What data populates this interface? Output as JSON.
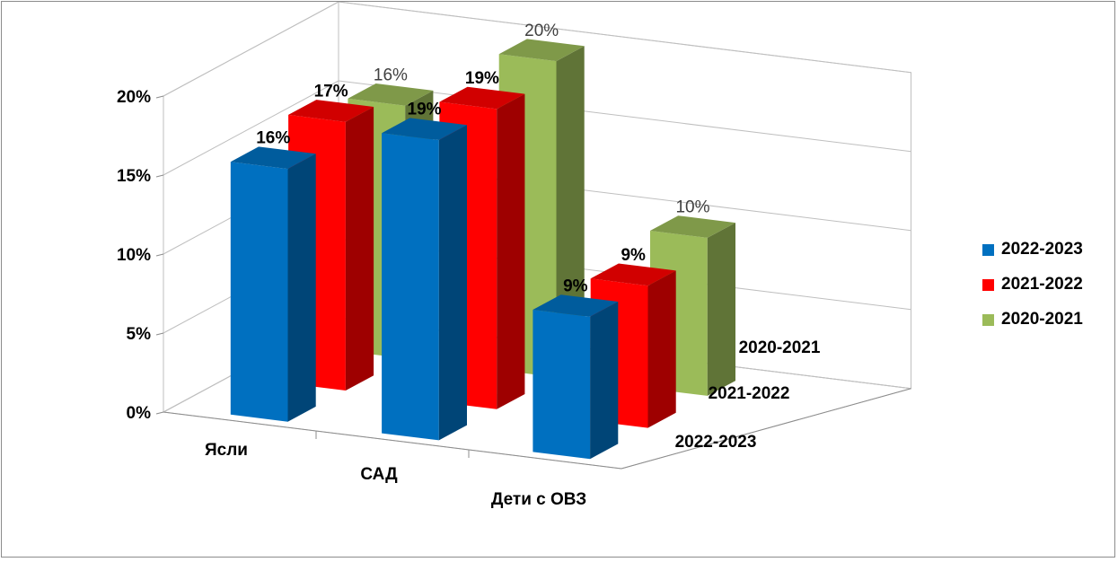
{
  "chart_data": {
    "type": "bar",
    "subtype": "3d-clustered-columns",
    "categories": [
      "Ясли",
      "САД",
      "Дети с ОВЗ"
    ],
    "depth_labels": [
      "2020-2021",
      "2021-2022",
      "2022-2023"
    ],
    "y_ticks": [
      "0%",
      "5%",
      "10%",
      "15%",
      "20%"
    ],
    "ylim": [
      0,
      20
    ],
    "grid": true,
    "legend_position": "right",
    "series": [
      {
        "name": "2022-2023",
        "values": [
          16,
          19,
          9
        ],
        "labels": [
          "16%",
          "19%",
          "9%"
        ],
        "color": "#0070C0",
        "label_style": "bold"
      },
      {
        "name": "2021-2022",
        "values": [
          17,
          19,
          9
        ],
        "labels": [
          "17%",
          "19%",
          "9%"
        ],
        "color": "#FF0000",
        "label_style": "bold"
      },
      {
        "name": "2020-2021",
        "values": [
          16,
          20,
          10
        ],
        "labels": [
          "16%",
          "20%",
          "10%"
        ],
        "color": "#9BBB59",
        "label_style": "light"
      }
    ]
  }
}
